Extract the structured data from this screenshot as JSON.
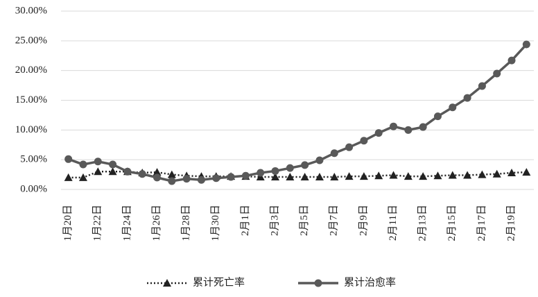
{
  "chart_data": {
    "type": "line",
    "categories": [
      "1月20日",
      null,
      "1月22日",
      null,
      "1月24日",
      null,
      "1月26日",
      null,
      "1月28日",
      null,
      "1月30日",
      null,
      "2月1日",
      null,
      "2月3日",
      null,
      "2月5日",
      null,
      "2月7日",
      null,
      "2月9日",
      null,
      "2月11日",
      null,
      "2月13日",
      null,
      "2月15日",
      null,
      "2月17日",
      null,
      "2月19日",
      null
    ],
    "series": [
      {
        "name": "累计死亡率",
        "color": "#222222",
        "marker": "triangle",
        "line_style": "dotted",
        "values": [
          2.0,
          2.0,
          3.0,
          3.0,
          3.0,
          2.8,
          2.9,
          2.5,
          2.3,
          2.2,
          2.2,
          2.2,
          2.2,
          2.1,
          2.1,
          2.1,
          2.1,
          2.1,
          2.1,
          2.2,
          2.2,
          2.3,
          2.4,
          2.2,
          2.2,
          2.3,
          2.4,
          2.4,
          2.5,
          2.6,
          2.8,
          2.9
        ]
      },
      {
        "name": "累计治愈率",
        "color": "#595959",
        "marker": "circle",
        "line_style": "solid",
        "values": [
          5.1,
          4.2,
          4.7,
          4.2,
          3.0,
          2.6,
          2.0,
          1.4,
          1.8,
          1.6,
          1.9,
          2.1,
          2.3,
          2.8,
          3.1,
          3.6,
          4.1,
          4.9,
          6.1,
          7.1,
          8.2,
          9.5,
          10.6,
          10.0,
          10.5,
          12.3,
          13.8,
          15.4,
          17.4,
          19.5,
          21.7,
          24.4
        ]
      }
    ],
    "ylim": [
      0,
      30
    ],
    "yticks": [
      {
        "value": 0,
        "label": "0.00%"
      },
      {
        "value": 5,
        "label": "5.00%"
      },
      {
        "value": 10,
        "label": "10.00%"
      },
      {
        "value": 15,
        "label": "15.00%"
      },
      {
        "value": 20,
        "label": "20.00%"
      },
      {
        "value": 25,
        "label": "25.00%"
      },
      {
        "value": 30,
        "label": "30.00%"
      }
    ],
    "grid": true,
    "legend": "bottom"
  }
}
